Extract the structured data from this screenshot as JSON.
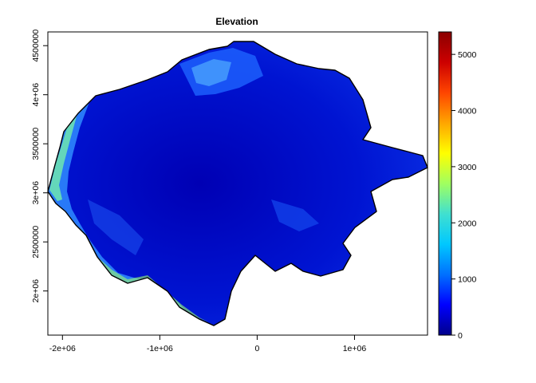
{
  "title": "Elevation",
  "x_ticks": [
    "-2e+06",
    "-1e+06",
    "0",
    "1e+06"
  ],
  "x_tick_values": [
    -2000000,
    -1000000,
    0,
    1000000
  ],
  "x_range": [
    -2150000,
    1750000
  ],
  "y_ticks": [
    "2e+06",
    "2500000",
    "3e+06",
    "3500000",
    "4e+06",
    "4500000"
  ],
  "y_tick_values": [
    2000000,
    2500000,
    3000000,
    3500000,
    4000000,
    4500000
  ],
  "y_range": [
    1550000,
    4640000
  ],
  "legend": {
    "ticks": [
      "0",
      "1000",
      "2000",
      "3000",
      "4000",
      "5000"
    ],
    "tick_values": [
      0,
      1000,
      2000,
      3000,
      4000,
      5000
    ],
    "range": [
      0,
      5400
    ],
    "colors": [
      "#00008b",
      "#0000ff",
      "#0070ff",
      "#00c8ff",
      "#40e0d0",
      "#a0ff60",
      "#ffff00",
      "#ffa500",
      "#ff4500",
      "#cc0000",
      "#8b0000"
    ]
  },
  "fill_color": "#0a14c8",
  "outline_color": "#000000"
}
